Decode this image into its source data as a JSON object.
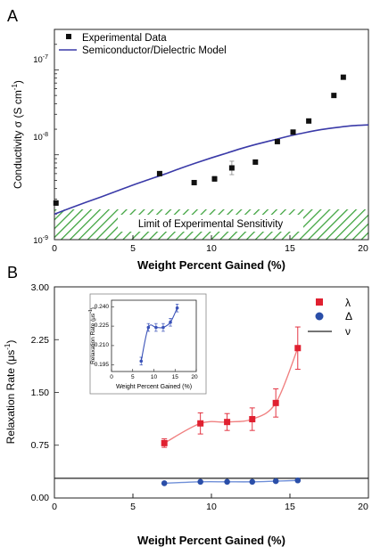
{
  "colors": {
    "model_line": "#3a3aa8",
    "exp_marker": "#111111",
    "hatch": "#3aa13a",
    "lambda": "#e02030",
    "lambda_fit": "#f08080",
    "delta": "#2a4ea8",
    "delta_fit": "#6f8fd8",
    "nu": "#222222",
    "inset_line": "#3a52b8"
  },
  "chart_data": [
    {
      "type": "scatter",
      "panel_label": "A",
      "xlabel": "Weight Percent Gained (%)",
      "ylabel": "Conductivity σ (S cm",
      "ylabel_exp": "-1",
      "ylabel_close": ")",
      "xlim": [
        0,
        20
      ],
      "ylim": [
        1e-09,
        3e-07
      ],
      "yscale": "log",
      "x_ticks": [
        "0",
        "5",
        "10",
        "15",
        "20"
      ],
      "y_ticks": [
        {
          "value": 1e-07,
          "base": "10",
          "exp": "-7"
        },
        {
          "value": 1e-08,
          "base": "10",
          "exp": "-8"
        },
        {
          "value": 1e-09,
          "base": "10",
          "exp": "-9"
        }
      ],
      "legend": {
        "placement": "top-left",
        "experimental": "Experimental Data",
        "model": "Semiconductor/Dielectric Model"
      },
      "region_label": "Limit of Experimental Sensitivity",
      "region_ylim": [
        1e-09,
        2.3e-09
      ],
      "series": [
        {
          "name": "Experimental Data",
          "kind": "points",
          "x": [
            0.1,
            6.7,
            8.9,
            10.2,
            11.3,
            12.8,
            14.2,
            15.2,
            16.2,
            17.8,
            18.4
          ],
          "y": [
            2.7e-09,
            6e-09,
            4.7e-09,
            5.2e-09,
            7e-09,
            8.2e-09,
            1.43e-08,
            1.85e-08,
            2.5e-08,
            5e-08,
            8.2e-08
          ],
          "yerr_factor": [
            1.07,
            1.05,
            1.04,
            1.07,
            1.2,
            1.04,
            1.04,
            1.04,
            1.04,
            1.04,
            1.04
          ]
        },
        {
          "name": "Semiconductor/Dielectric Model",
          "kind": "line",
          "x": [
            0,
            1,
            2,
            3,
            4,
            5,
            6,
            7,
            8,
            9,
            10,
            11,
            12,
            13,
            14,
            15,
            16,
            17,
            18,
            19,
            20
          ],
          "y": [
            2e-09,
            2.35e-09,
            2.75e-09,
            3.2e-09,
            3.75e-09,
            4.4e-09,
            5.1e-09,
            5.9e-09,
            6.9e-09,
            8e-09,
            9.2e-09,
            1.05e-08,
            1.2e-08,
            1.35e-08,
            1.5e-08,
            1.67e-08,
            1.83e-08,
            1.98e-08,
            2.1e-08,
            2.2e-08,
            2.25e-08
          ]
        }
      ]
    },
    {
      "type": "scatter",
      "panel_label": "B",
      "xlabel": "Weight Percent Gained (%)",
      "ylabel": "Relaxation Rate (μs",
      "ylabel_exp": "-1",
      "ylabel_close": ")",
      "xlim": [
        0,
        20
      ],
      "ylim": [
        0,
        3.0
      ],
      "x_ticks": [
        "0",
        "5",
        "10",
        "15",
        "20"
      ],
      "y_ticks": [
        "0.00",
        "0.75",
        "1.50",
        "2.25",
        "3.00"
      ],
      "legend_placement": "top-right",
      "series": [
        {
          "name": "λ",
          "kind": "points",
          "x": [
            7.0,
            9.3,
            11.0,
            12.6,
            14.1,
            15.5
          ],
          "y": [
            0.78,
            1.06,
            1.08,
            1.12,
            1.35,
            2.13
          ],
          "yerr": [
            0.06,
            0.15,
            0.12,
            0.16,
            0.2,
            0.3
          ]
        },
        {
          "name": "Δ",
          "kind": "points",
          "x": [
            7.0,
            9.3,
            11.0,
            12.6,
            14.1,
            15.5
          ],
          "y": [
            0.21,
            0.23,
            0.23,
            0.23,
            0.24,
            0.25
          ],
          "yerr": [
            0.01,
            0.01,
            0.01,
            0.01,
            0.01,
            0.01
          ]
        },
        {
          "name": "ν",
          "kind": "hline",
          "y": 0.28
        }
      ],
      "inset": {
        "xlabel": "Weight Percent Gained (%)",
        "ylabel": "Relaxation Rate (μs",
        "ylabel_exp": "-1",
        "ylabel_close": ")",
        "xlim": [
          0,
          20
        ],
        "ylim": [
          0.19,
          0.245
        ],
        "x_ticks": [
          "0",
          "5",
          "10",
          "15",
          "20"
        ],
        "y_ticks": [
          "0.195",
          "0.210",
          "0.225",
          "0.240"
        ],
        "x": [
          7.0,
          8.7,
          10.5,
          12.2,
          13.9,
          15.5
        ],
        "y": [
          0.198,
          0.224,
          0.224,
          0.224,
          0.228,
          0.239
        ],
        "yerr": [
          0.003,
          0.003,
          0.003,
          0.003,
          0.003,
          0.003
        ]
      }
    }
  ]
}
